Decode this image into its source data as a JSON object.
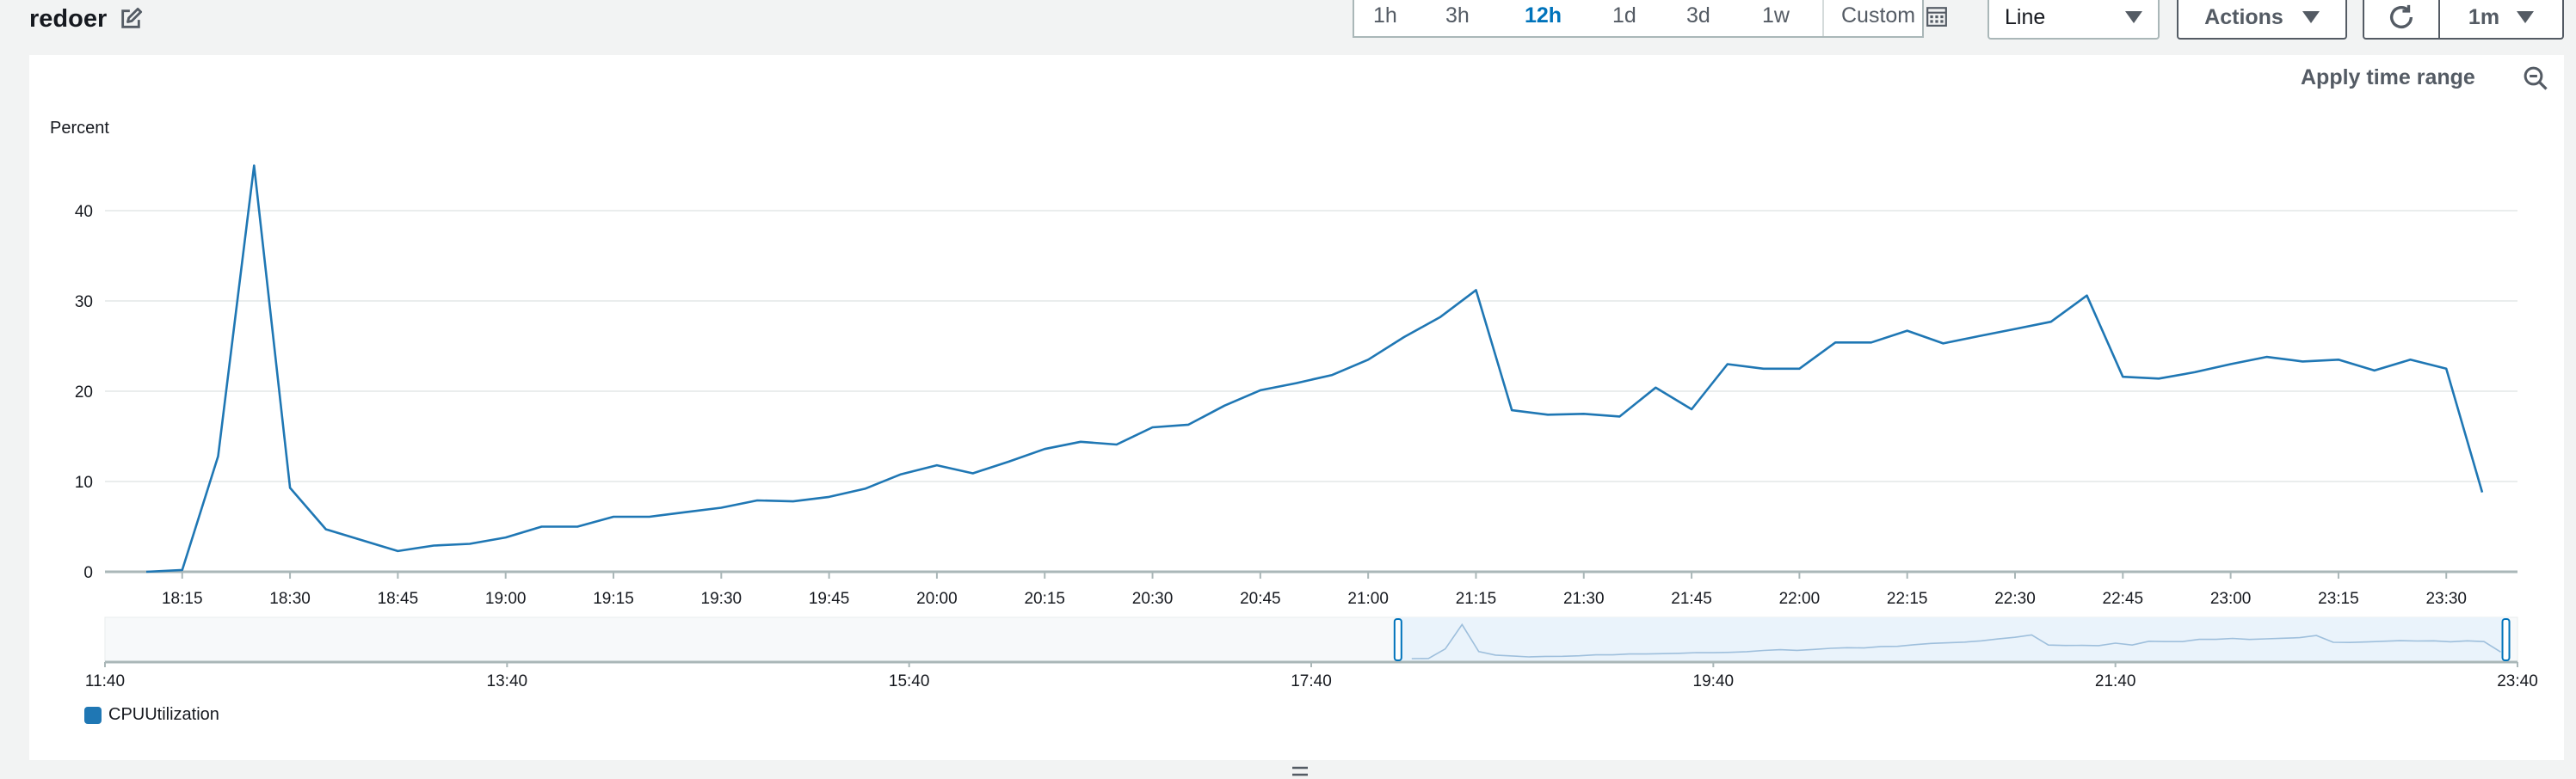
{
  "widget": {
    "title": "redoer",
    "edit_icon": "pencil-edit-icon"
  },
  "time_range": {
    "options": [
      "1h",
      "3h",
      "12h",
      "1d",
      "3d",
      "1w"
    ],
    "active": "12h",
    "custom_label": "Custom",
    "custom_icon": "calendar-icon"
  },
  "view_select": {
    "value": "Line",
    "icon": "caret-down-icon"
  },
  "actions": {
    "label": "Actions",
    "icon": "caret-down-icon"
  },
  "refresh": {
    "icon": "refresh-icon",
    "interval": "1m",
    "interval_icon": "caret-down-icon"
  },
  "panel": {
    "apply_time_range": "Apply time range",
    "zoom_icon": "zoom-out-icon"
  },
  "colors": {
    "series": "#1f77b4",
    "grid": "#eaeded",
    "axis": "#aab7b8",
    "active": "#0073bb"
  },
  "chart_data": {
    "type": "line",
    "title": "",
    "ylabel": "Percent",
    "xlabel": "",
    "ylim": [
      0,
      50
    ],
    "yticks": [
      0,
      10,
      20,
      30,
      40
    ],
    "x_start": "18:10",
    "x_end": "23:35",
    "xticks": [
      "18:15",
      "18:30",
      "18:45",
      "19:00",
      "19:15",
      "19:30",
      "19:45",
      "20:00",
      "20:15",
      "20:30",
      "20:45",
      "21:00",
      "21:15",
      "21:30",
      "21:45",
      "22:00",
      "22:15",
      "22:30",
      "22:45",
      "23:00",
      "23:15",
      "23:30"
    ],
    "grid": true,
    "legend": "bottom-left",
    "series": [
      {
        "name": "CPUUtilization",
        "x": [
          "18:10",
          "18:15",
          "18:20",
          "18:25",
          "18:30",
          "18:35",
          "18:40",
          "18:45",
          "18:50",
          "18:55",
          "19:00",
          "19:05",
          "19:10",
          "19:15",
          "19:20",
          "19:25",
          "19:30",
          "19:35",
          "19:40",
          "19:45",
          "19:50",
          "19:55",
          "20:00",
          "20:05",
          "20:10",
          "20:15",
          "20:20",
          "20:25",
          "20:30",
          "20:35",
          "20:40",
          "20:45",
          "20:50",
          "20:55",
          "21:00",
          "21:05",
          "21:10",
          "21:15",
          "21:20",
          "21:25",
          "21:30",
          "21:35",
          "21:40",
          "21:45",
          "21:50",
          "21:55",
          "22:00",
          "22:05",
          "22:10",
          "22:15",
          "22:20",
          "22:25",
          "22:30",
          "22:35",
          "22:40",
          "22:45",
          "22:50",
          "22:55",
          "23:00",
          "23:05",
          "23:10",
          "23:15",
          "23:20",
          "23:25",
          "23:30",
          "23:35"
        ],
        "values": [
          0,
          0.2,
          12.8,
          45,
          9.3,
          4.7,
          3.5,
          2.3,
          2.9,
          3.1,
          3.8,
          5.0,
          5.0,
          6.1,
          6.1,
          6.6,
          7.1,
          7.9,
          7.8,
          8.3,
          9.2,
          10.8,
          11.8,
          10.9,
          12.2,
          13.6,
          14.4,
          14.1,
          16.0,
          16.3,
          18.4,
          20.1,
          20.9,
          21.8,
          23.5,
          26.0,
          28.2,
          31.2,
          17.9,
          17.4,
          17.5,
          17.2,
          20.4,
          18.0,
          23.0,
          22.5,
          22.5,
          25.4,
          25.4,
          26.7,
          25.3,
          26.1,
          26.9,
          27.7,
          30.6,
          21.6,
          21.4,
          22.1,
          23.0,
          23.8,
          23.3,
          23.5,
          22.3,
          23.5,
          22.5,
          8.8
        ]
      }
    ],
    "navigator": {
      "xticks": [
        "11:40",
        "13:40",
        "15:40",
        "17:40",
        "19:40",
        "21:40",
        "23:40"
      ],
      "selection": [
        "18:10",
        "23:35"
      ]
    }
  }
}
